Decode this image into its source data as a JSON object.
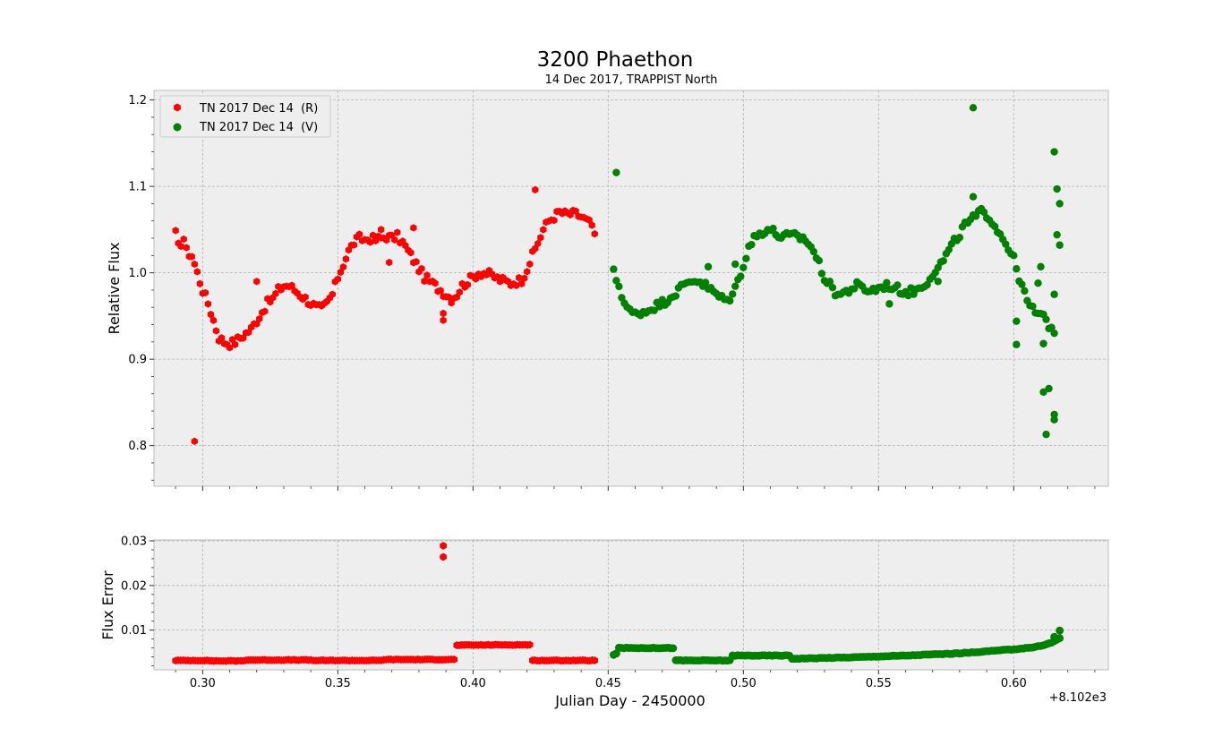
{
  "chart_data": [
    {
      "panel": "top",
      "type": "scatter",
      "title": "3200 Phaethon",
      "subtitle": "14 Dec 2017, TRAPPIST North",
      "ylabel": "Relative  Flux",
      "xlabel": "",
      "xlim": [
        0.282,
        0.635
      ],
      "ylim": [
        0.753,
        1.211
      ],
      "xticks": [
        0.3,
        0.35,
        0.4,
        0.45,
        0.5,
        0.55,
        0.6
      ],
      "yticks": [
        0.8,
        0.9,
        1.0,
        1.1,
        1.2
      ],
      "ytick_labels": [
        "0.8",
        "0.9",
        "1.0",
        "1.1",
        "1.2"
      ],
      "grid": true,
      "legend_position": "top-left",
      "series": [
        {
          "name": "TN 2017 Dec 14  (R)",
          "color": "#ff0000",
          "marker": "hexagon",
          "key_points": [
            [
              0.29,
              1.045
            ],
            [
              0.291,
              1.03
            ],
            [
              0.293,
              1.04
            ],
            [
              0.294,
              1.025
            ],
            [
              0.296,
              1.02
            ],
            [
              0.297,
              1.01
            ],
            [
              0.299,
              0.99
            ],
            [
              0.3,
              0.98
            ],
            [
              0.302,
              0.965
            ],
            [
              0.303,
              0.955
            ],
            [
              0.305,
              0.935
            ],
            [
              0.306,
              0.925
            ],
            [
              0.308,
              0.92
            ],
            [
              0.31,
              0.918
            ],
            [
              0.312,
              0.92
            ],
            [
              0.314,
              0.925
            ],
            [
              0.316,
              0.93
            ],
            [
              0.318,
              0.935
            ],
            [
              0.32,
              0.945
            ],
            [
              0.322,
              0.955
            ],
            [
              0.324,
              0.965
            ],
            [
              0.326,
              0.97
            ],
            [
              0.328,
              0.98
            ],
            [
              0.33,
              0.985
            ],
            [
              0.332,
              0.985
            ],
            [
              0.334,
              0.98
            ],
            [
              0.336,
              0.975
            ],
            [
              0.338,
              0.97
            ],
            [
              0.34,
              0.965
            ],
            [
              0.342,
              0.96
            ],
            [
              0.344,
              0.958
            ],
            [
              0.346,
              0.965
            ],
            [
              0.348,
              0.975
            ],
            [
              0.35,
              0.995
            ],
            [
              0.352,
              1.01
            ],
            [
              0.354,
              1.025
            ],
            [
              0.356,
              1.035
            ],
            [
              0.358,
              1.04
            ],
            [
              0.36,
              1.038
            ],
            [
              0.362,
              1.04
            ],
            [
              0.364,
              1.038
            ],
            [
              0.366,
              1.04
            ],
            [
              0.368,
              1.042
            ],
            [
              0.37,
              1.04
            ],
            [
              0.372,
              1.042
            ],
            [
              0.374,
              1.035
            ],
            [
              0.376,
              1.025
            ],
            [
              0.378,
              1.015
            ],
            [
              0.38,
              1.005
            ],
            [
              0.382,
              0.995
            ],
            [
              0.384,
              0.99
            ],
            [
              0.386,
              0.985
            ],
            [
              0.388,
              0.98
            ],
            [
              0.39,
              0.975
            ],
            [
              0.392,
              0.97
            ],
            [
              0.394,
              0.975
            ],
            [
              0.396,
              0.985
            ],
            [
              0.398,
              0.99
            ],
            [
              0.4,
              0.995
            ],
            [
              0.402,
              1.0
            ],
            [
              0.404,
              1.0
            ],
            [
              0.406,
              0.998
            ],
            [
              0.408,
              0.995
            ],
            [
              0.41,
              0.992
            ],
            [
              0.412,
              0.99
            ],
            [
              0.414,
              0.988
            ],
            [
              0.416,
              0.99
            ],
            [
              0.418,
              0.992
            ],
            [
              0.42,
              1.005
            ],
            [
              0.422,
              1.02
            ],
            [
              0.424,
              1.035
            ],
            [
              0.426,
              1.05
            ],
            [
              0.428,
              1.06
            ],
            [
              0.43,
              1.065
            ],
            [
              0.432,
              1.07
            ],
            [
              0.434,
              1.068
            ],
            [
              0.436,
              1.068
            ],
            [
              0.438,
              1.068
            ],
            [
              0.44,
              1.065
            ],
            [
              0.442,
              1.06
            ],
            [
              0.444,
              1.055
            ],
            [
              0.445,
              1.045
            ]
          ],
          "outliers": [
            [
              0.297,
              0.805
            ],
            [
              0.32,
              0.99
            ],
            [
              0.369,
              1.012
            ],
            [
              0.389,
              0.945
            ],
            [
              0.389,
              0.953
            ],
            [
              0.423,
              1.096
            ],
            [
              0.366,
              1.05
            ],
            [
              0.378,
              1.052
            ]
          ]
        },
        {
          "name": "TN 2017 Dec 14  (V)",
          "color": "#008000",
          "marker": "circle",
          "key_points": [
            [
              0.452,
              1.0
            ],
            [
              0.454,
              0.985
            ],
            [
              0.456,
              0.965
            ],
            [
              0.458,
              0.955
            ],
            [
              0.46,
              0.952
            ],
            [
              0.462,
              0.955
            ],
            [
              0.464,
              0.955
            ],
            [
              0.466,
              0.96
            ],
            [
              0.468,
              0.962
            ],
            [
              0.47,
              0.965
            ],
            [
              0.472,
              0.97
            ],
            [
              0.474,
              0.975
            ],
            [
              0.476,
              0.98
            ],
            [
              0.478,
              0.985
            ],
            [
              0.48,
              0.99
            ],
            [
              0.482,
              0.992
            ],
            [
              0.484,
              0.99
            ],
            [
              0.486,
              0.985
            ],
            [
              0.488,
              0.98
            ],
            [
              0.49,
              0.975
            ],
            [
              0.492,
              0.97
            ],
            [
              0.494,
              0.968
            ],
            [
              0.496,
              0.975
            ],
            [
              0.498,
              0.99
            ],
            [
              0.5,
              1.01
            ],
            [
              0.502,
              1.03
            ],
            [
              0.504,
              1.04
            ],
            [
              0.506,
              1.045
            ],
            [
              0.508,
              1.05
            ],
            [
              0.51,
              1.05
            ],
            [
              0.512,
              1.045
            ],
            [
              0.514,
              1.042
            ],
            [
              0.516,
              1.042
            ],
            [
              0.518,
              1.042
            ],
            [
              0.52,
              1.042
            ],
            [
              0.522,
              1.04
            ],
            [
              0.524,
              1.035
            ],
            [
              0.526,
              1.025
            ],
            [
              0.528,
              1.01
            ],
            [
              0.53,
              0.995
            ],
            [
              0.532,
              0.985
            ],
            [
              0.534,
              0.978
            ],
            [
              0.536,
              0.975
            ],
            [
              0.538,
              0.978
            ],
            [
              0.54,
              0.982
            ],
            [
              0.542,
              0.985
            ],
            [
              0.544,
              0.982
            ],
            [
              0.546,
              0.98
            ],
            [
              0.548,
              0.98
            ],
            [
              0.55,
              0.982
            ],
            [
              0.552,
              0.985
            ],
            [
              0.554,
              0.985
            ],
            [
              0.556,
              0.982
            ],
            [
              0.558,
              0.98
            ],
            [
              0.56,
              0.978
            ],
            [
              0.562,
              0.978
            ],
            [
              0.564,
              0.98
            ],
            [
              0.566,
              0.985
            ],
            [
              0.568,
              0.99
            ],
            [
              0.57,
              1.0
            ],
            [
              0.572,
              1.005
            ],
            [
              0.574,
              1.015
            ],
            [
              0.576,
              1.025
            ],
            [
              0.578,
              1.035
            ],
            [
              0.58,
              1.045
            ],
            [
              0.582,
              1.055
            ],
            [
              0.584,
              1.06
            ],
            [
              0.586,
              1.065
            ],
            [
              0.588,
              1.07
            ],
            [
              0.59,
              1.068
            ],
            [
              0.592,
              1.06
            ],
            [
              0.594,
              1.05
            ],
            [
              0.596,
              1.04
            ],
            [
              0.598,
              1.03
            ],
            [
              0.6,
              1.015
            ],
            [
              0.602,
              0.995
            ],
            [
              0.604,
              0.975
            ],
            [
              0.606,
              0.96
            ],
            [
              0.608,
              0.955
            ],
            [
              0.61,
              0.95
            ],
            [
              0.612,
              0.945
            ],
            [
              0.614,
              0.935
            ],
            [
              0.615,
              0.93
            ]
          ],
          "outliers": [
            [
              0.453,
              1.116
            ],
            [
              0.585,
              1.191
            ],
            [
              0.585,
              1.088
            ],
            [
              0.615,
              1.14
            ],
            [
              0.616,
              1.097
            ],
            [
              0.617,
              1.08
            ],
            [
              0.616,
              1.044
            ],
            [
              0.617,
              1.032
            ],
            [
              0.615,
              0.975
            ],
            [
              0.601,
              0.944
            ],
            [
              0.601,
              0.917
            ],
            [
              0.61,
              1.007
            ],
            [
              0.609,
              0.988
            ],
            [
              0.611,
              0.918
            ],
            [
              0.611,
              0.862
            ],
            [
              0.613,
              0.866
            ],
            [
              0.612,
              0.813
            ],
            [
              0.615,
              0.836
            ],
            [
              0.615,
              0.83
            ],
            [
              0.554,
              0.964
            ],
            [
              0.572,
              0.99
            ],
            [
              0.487,
              1.007
            ],
            [
              0.497,
              1.01
            ]
          ]
        }
      ]
    },
    {
      "panel": "bottom",
      "type": "scatter",
      "ylabel": "Flux Error",
      "xlabel": "Julian Day - 2450000",
      "offset_text": "+8.102e3",
      "xlim": [
        0.282,
        0.635
      ],
      "ylim": [
        0.0011,
        0.0302
      ],
      "xticks": [
        0.3,
        0.35,
        0.4,
        0.45,
        0.5,
        0.55,
        0.6
      ],
      "xtick_labels": [
        "0.30",
        "0.35",
        "0.40",
        "0.45",
        "0.50",
        "0.55",
        "0.60"
      ],
      "yticks": [
        0.01,
        0.02,
        0.03
      ],
      "ytick_labels": [
        "0.01",
        "0.02",
        "0.03"
      ],
      "grid": true,
      "series": [
        {
          "name": "TN 2017 Dec 14  (R)",
          "color": "#ff0000",
          "marker": "hexagon",
          "key_points": [
            [
              0.29,
              0.0032
            ],
            [
              0.3,
              0.0032
            ],
            [
              0.305,
              0.0031
            ],
            [
              0.315,
              0.0031
            ],
            [
              0.316,
              0.0033
            ],
            [
              0.33,
              0.0033
            ],
            [
              0.34,
              0.0033
            ],
            [
              0.341,
              0.0032
            ],
            [
              0.366,
              0.0032
            ],
            [
              0.367,
              0.0034
            ],
            [
              0.385,
              0.0034
            ],
            [
              0.39,
              0.0034
            ],
            [
              0.393,
              0.0034
            ],
            [
              0.394,
              0.0066
            ],
            [
              0.41,
              0.0067
            ],
            [
              0.421,
              0.0067
            ],
            [
              0.422,
              0.0032
            ],
            [
              0.445,
              0.0032
            ]
          ],
          "outliers": [
            [
              0.389,
              0.0289
            ],
            [
              0.389,
              0.0264
            ]
          ]
        },
        {
          "name": "TN 2017 Dec 14  (V)",
          "color": "#008000",
          "marker": "circle",
          "key_points": [
            [
              0.452,
              0.0045
            ],
            [
              0.453,
              0.0048
            ],
            [
              0.454,
              0.006
            ],
            [
              0.474,
              0.006
            ],
            [
              0.475,
              0.0032
            ],
            [
              0.495,
              0.0032
            ],
            [
              0.496,
              0.0043
            ],
            [
              0.517,
              0.0043
            ],
            [
              0.518,
              0.0036
            ],
            [
              0.54,
              0.0039
            ],
            [
              0.56,
              0.0043
            ],
            [
              0.58,
              0.0048
            ],
            [
              0.6,
              0.0057
            ],
            [
              0.608,
              0.0062
            ],
            [
              0.612,
              0.0068
            ],
            [
              0.614,
              0.0072
            ],
            [
              0.617,
              0.0082
            ]
          ],
          "outliers": [
            [
              0.617,
              0.0099
            ],
            [
              0.615,
              0.0085
            ]
          ]
        }
      ]
    }
  ]
}
